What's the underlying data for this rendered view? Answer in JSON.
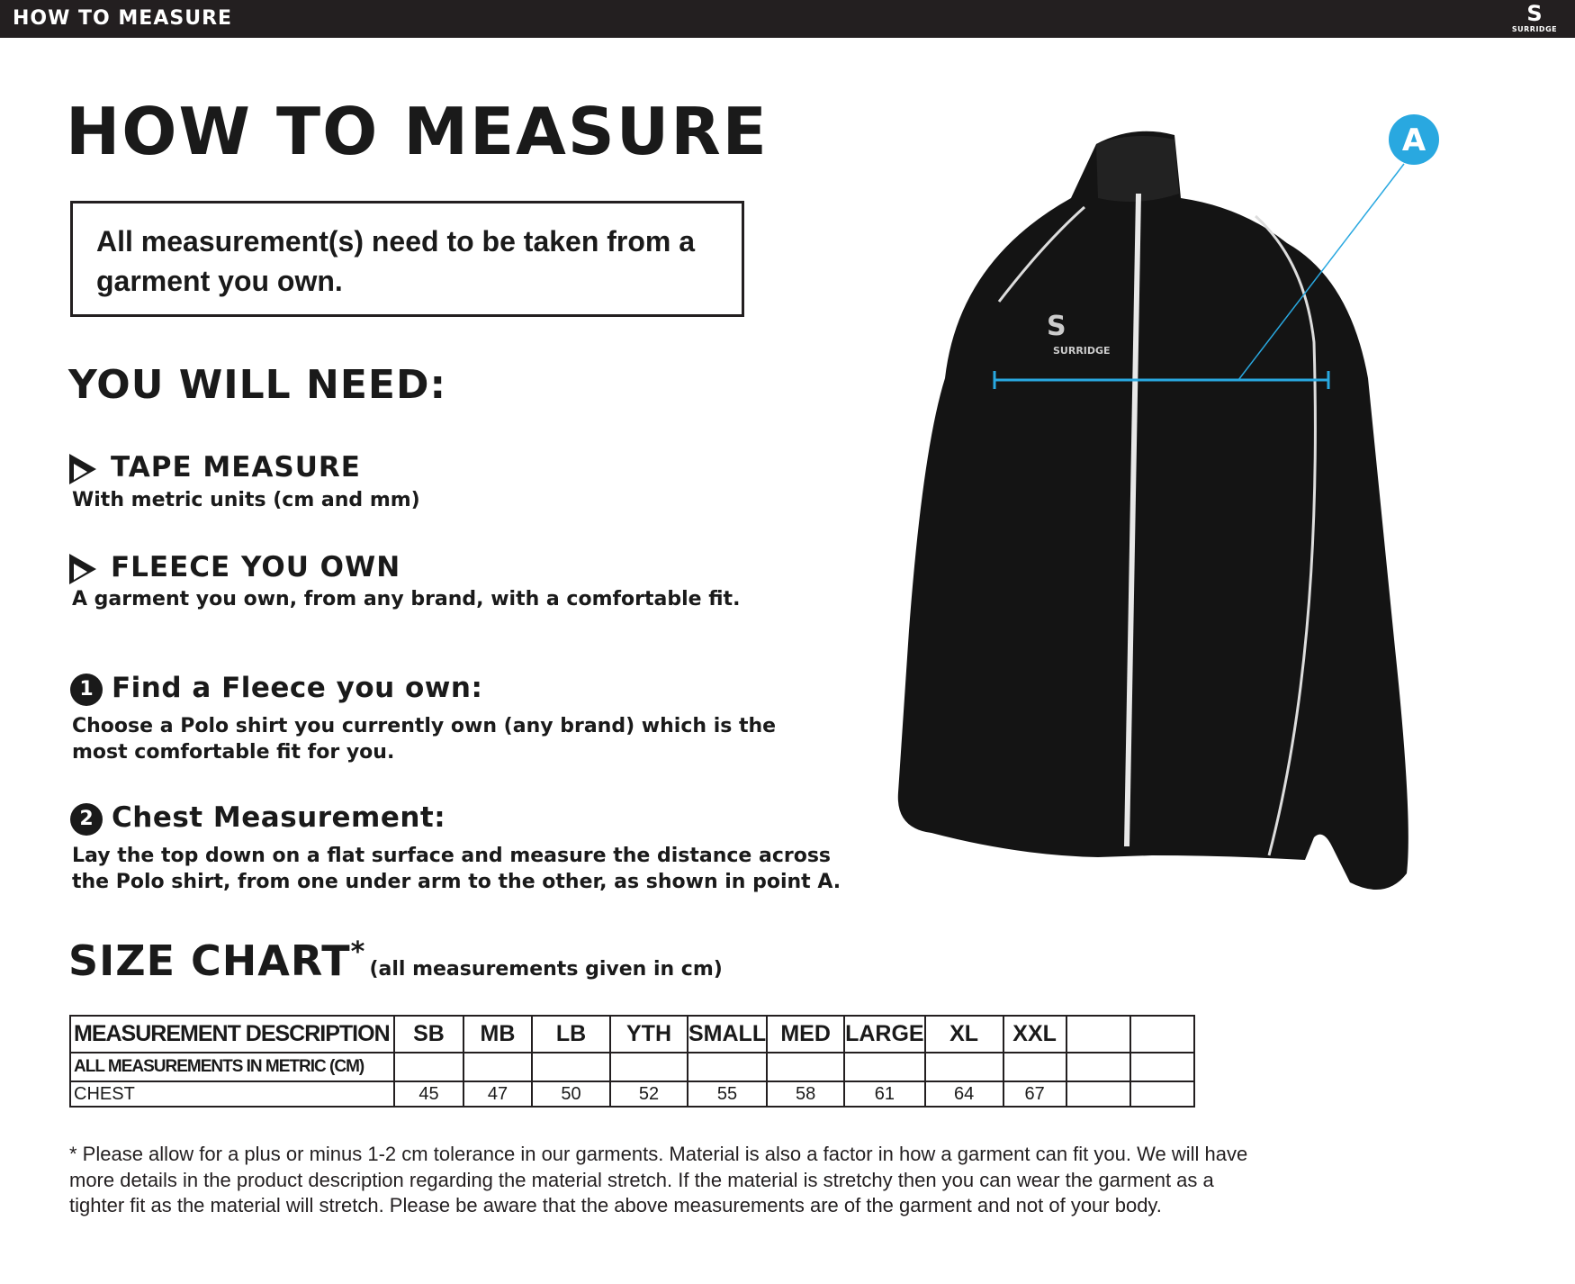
{
  "topbar": {
    "title": "HOW TO MEASURE",
    "logo_text": "SURRIDGE"
  },
  "title": "HOW TO MEASURE",
  "notice": "All measurement(s) need to be taken from a garment you own.",
  "need_heading": "YOU WILL NEED:",
  "needs": [
    {
      "title": "TAPE MEASURE",
      "desc": "With metric units (cm and mm)"
    },
    {
      "title": "FLEECE YOU OWN",
      "desc": "A garment you own, from any brand, with a comfortable fit."
    }
  ],
  "steps": [
    {
      "num": "1",
      "title": "Find a Fleece you own:",
      "desc": "Choose a Polo shirt you currently own (any brand) which is the most comfortable fit for you."
    },
    {
      "num": "2",
      "title": "Chest Measurement:",
      "desc": "Lay the top down on a flat surface and measure the distance across the Polo shirt, from one under arm to the other, as shown in point A."
    }
  ],
  "size_chart": {
    "heading": "SIZE CHART",
    "asterisk": "*",
    "note": "(all measurements given in cm)",
    "headers": [
      "MEASUREMENT DESCRIPTION",
      "SB",
      "MB",
      "LB",
      "YTH",
      "SMALL",
      "MED",
      "LARGE",
      "XL",
      "XXL",
      "",
      ""
    ],
    "rows": [
      [
        "ALL MEASUREMENTS IN METRIC (CM)",
        "",
        "",
        "",
        "",
        "",
        "",
        "",
        "",
        "",
        "",
        ""
      ],
      [
        "CHEST",
        "45",
        "47",
        "50",
        "52",
        "55",
        "58",
        "61",
        "64",
        "67",
        "",
        ""
      ]
    ]
  },
  "footnote": "* Please allow for a plus or minus 1-2 cm tolerance in our garments. Material is also a factor in how a garment can fit you. We will have more details in the product description regarding the material stretch.  If the material is stretchy then you can wear the garment as a tighter fit as the material will stretch.  Please be aware that the above measurements are of the garment and not of your body.",
  "diagram": {
    "marker_label": "A",
    "accent": "#29a8e0",
    "jacket_logo": "SURRIDGE"
  }
}
